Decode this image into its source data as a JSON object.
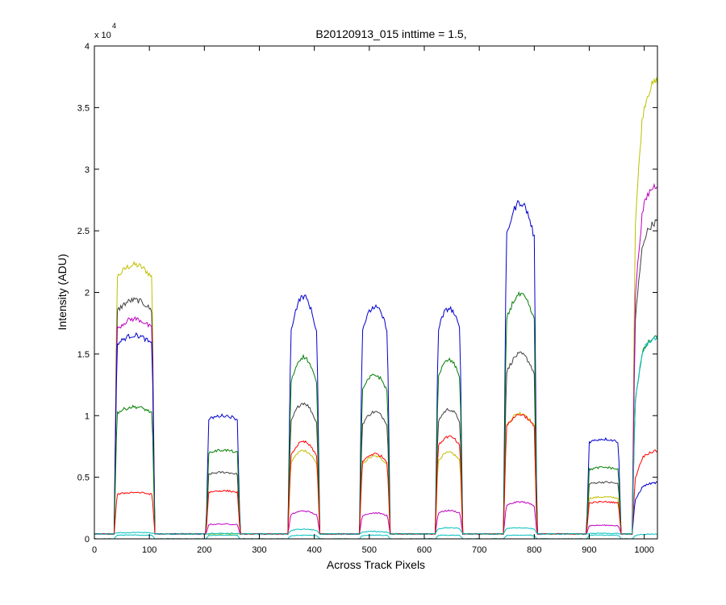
{
  "chart_data": {
    "type": "line",
    "title": "B20120913_015 inttime = 1.5,",
    "xlabel": "Across Track Pixels",
    "ylabel": "Intensity (ADU)",
    "y_exponent_label": "x 10",
    "y_exponent_power": "4",
    "xlim": [
      0,
      1024
    ],
    "ylim": [
      0,
      40000
    ],
    "xticks": [
      0,
      100,
      200,
      300,
      400,
      500,
      600,
      700,
      800,
      900,
      1000
    ],
    "yticks": [
      0,
      5000,
      10000,
      15000,
      20000,
      25000,
      30000,
      35000,
      40000
    ],
    "ytick_labels": [
      "0",
      "0.5",
      "1",
      "1.5",
      "2",
      "2.5",
      "3",
      "3.5",
      "4"
    ],
    "grid": false,
    "legend": "none",
    "blocks": [
      {
        "start": 36,
        "end": 110,
        "shape": "hump",
        "rise": 0.25
      },
      {
        "start": 203,
        "end": 265,
        "shape": "flat"
      },
      {
        "start": 352,
        "end": 410,
        "shape": "peak"
      },
      {
        "start": 482,
        "end": 538,
        "shape": "round"
      },
      {
        "start": 620,
        "end": 670,
        "shape": "round"
      },
      {
        "start": 744,
        "end": 805,
        "shape": "round"
      },
      {
        "start": 895,
        "end": 958,
        "shape": "flat"
      },
      {
        "start": 978,
        "end": 1024,
        "shape": "rise"
      }
    ],
    "series": [
      {
        "color": "#bfbf00",
        "baseline": 400,
        "levels": [
          21800,
          400,
          7300,
          6700,
          7000,
          10200,
          3400,
          37500
        ]
      },
      {
        "color": "#404040",
        "baseline": 400,
        "levels": [
          19000,
          5400,
          11200,
          10300,
          10500,
          15000,
          4600,
          26000
        ]
      },
      {
        "color": "#bf00bf",
        "baseline": 400,
        "levels": [
          17500,
          1200,
          2300,
          2100,
          2300,
          3000,
          1100,
          29000
        ]
      },
      {
        "color": "#0000cc",
        "baseline": 400,
        "levels": [
          16200,
          10000,
          20000,
          18800,
          18700,
          27300,
          8100,
          4600
        ]
      },
      {
        "color": "#007f00",
        "baseline": 400,
        "levels": [
          10500,
          7200,
          15000,
          13300,
          14500,
          19800,
          5800,
          16500
        ]
      },
      {
        "color": "#ff0000",
        "baseline": 400,
        "levels": [
          3700,
          3900,
          8000,
          6900,
          8300,
          10100,
          3000,
          7200
        ]
      },
      {
        "color": "#00bfbf",
        "baseline": 400,
        "levels": [
          500,
          450,
          800,
          600,
          900,
          900,
          450,
          16500
        ]
      },
      {
        "color": "#00bfbf",
        "baseline": 0,
        "levels": [
          300,
          300,
          300,
          300,
          300,
          300,
          300,
          400
        ]
      }
    ]
  }
}
